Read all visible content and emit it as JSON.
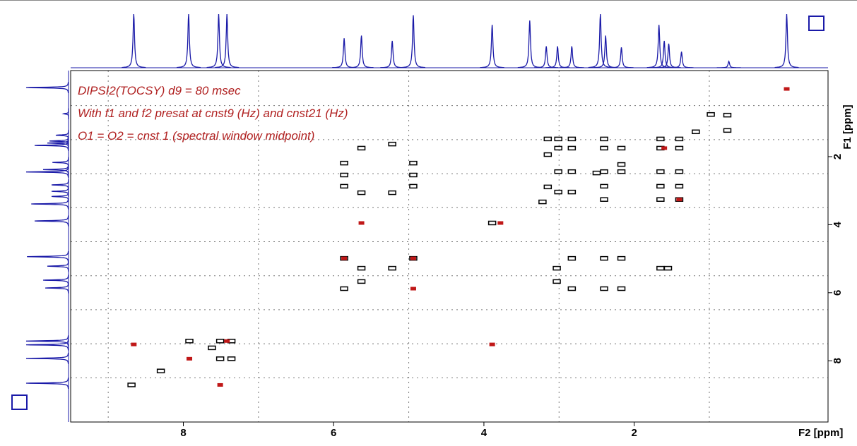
{
  "chart_data": {
    "type": "nmr2d",
    "annotations": [
      "DIPSI2(TOCSY)  d9 = 80 msec",
      "With f1 and f2 presat at cnst9 (Hz) and cnst21 (Hz)",
      "O1 = O2 = cnst 1 (spectral window midpoint)"
    ],
    "x_label": "F2 [ppm]",
    "y_label": "F1 [ppm]",
    "xlim": [
      9.5,
      -0.58
    ],
    "ylim": [
      -0.53,
      9.8
    ],
    "xticks": [
      8,
      6,
      4,
      2
    ],
    "yticks": [
      2,
      4,
      6,
      8
    ],
    "xgrid": [
      9,
      7,
      5,
      3,
      1
    ],
    "ygrid": [
      0.5,
      1.5,
      2.5,
      3.5,
      4.5,
      5.5,
      6.5,
      7.5,
      8.5
    ],
    "projection": {
      "color": "#1a1aa8",
      "shifts": [
        8.66,
        7.93,
        7.53,
        7.42,
        5.86,
        5.63,
        5.22,
        4.94,
        3.89,
        3.39,
        3.17,
        3.02,
        2.83,
        2.45,
        2.38,
        2.17,
        1.67,
        1.6,
        1.54,
        1.37,
        0.74,
        -0.03
      ],
      "heights": [
        100,
        100,
        100,
        100,
        55,
        60,
        50,
        98,
        80,
        88,
        40,
        40,
        40,
        100,
        60,
        38,
        80,
        50,
        45,
        30,
        12,
        100
      ]
    },
    "positive_peaks": {
      "color": "#000000",
      "x": [
        8.69,
        7.92,
        7.51,
        7.51,
        7.36,
        7.36,
        7.62,
        8.3,
        5.86,
        5.86,
        5.86,
        5.86,
        5.86,
        5.63,
        5.63,
        5.63,
        5.63,
        5.22,
        5.22,
        5.22,
        4.94,
        4.94,
        4.94,
        4.94,
        3.89,
        3.15,
        3.15,
        3.15,
        3.01,
        3.01,
        3.01,
        3.01,
        2.83,
        2.83,
        2.83,
        2.83,
        2.83,
        2.83,
        3.03,
        3.03,
        2.4,
        2.4,
        2.4,
        2.4,
        2.4,
        2.4,
        2.4,
        2.17,
        2.17,
        2.17,
        2.17,
        2.17,
        1.65,
        1.65,
        1.65,
        1.65,
        1.65,
        1.65,
        1.55,
        1.4,
        1.4,
        1.4,
        1.4,
        1.4,
        0.76,
        0.76,
        1.18,
        0.98,
        3.22,
        2.5
      ],
      "y": [
        8.71,
        7.42,
        7.42,
        7.94,
        7.42,
        7.94,
        7.62,
        8.3,
        2.19,
        2.54,
        2.87,
        4.99,
        5.88,
        1.75,
        3.06,
        5.28,
        5.67,
        1.63,
        3.06,
        5.28,
        2.19,
        2.54,
        2.87,
        4.99,
        3.95,
        1.48,
        1.94,
        2.89,
        1.48,
        1.75,
        2.44,
        3.04,
        1.48,
        1.75,
        2.44,
        3.04,
        4.99,
        5.88,
        5.28,
        5.67,
        1.48,
        1.75,
        2.44,
        2.87,
        3.26,
        4.99,
        5.88,
        1.75,
        2.23,
        2.44,
        4.99,
        5.88,
        1.48,
        1.75,
        2.44,
        2.87,
        3.26,
        5.28,
        5.28,
        1.48,
        1.75,
        2.44,
        2.87,
        3.26,
        0.78,
        1.23,
        1.27,
        0.76,
        3.33,
        2.48
      ]
    },
    "negative_peaks": {
      "color": "#c01818",
      "x": [
        8.66,
        7.92,
        7.51,
        7.42,
        5.86,
        4.94,
        4.94,
        3.89,
        3.78,
        5.63,
        1.6,
        1.4,
        -0.03
      ],
      "y": [
        7.52,
        7.94,
        8.71,
        7.42,
        4.99,
        5.88,
        4.99,
        7.52,
        3.95,
        3.95,
        1.75,
        3.26,
        0.01
      ]
    }
  }
}
